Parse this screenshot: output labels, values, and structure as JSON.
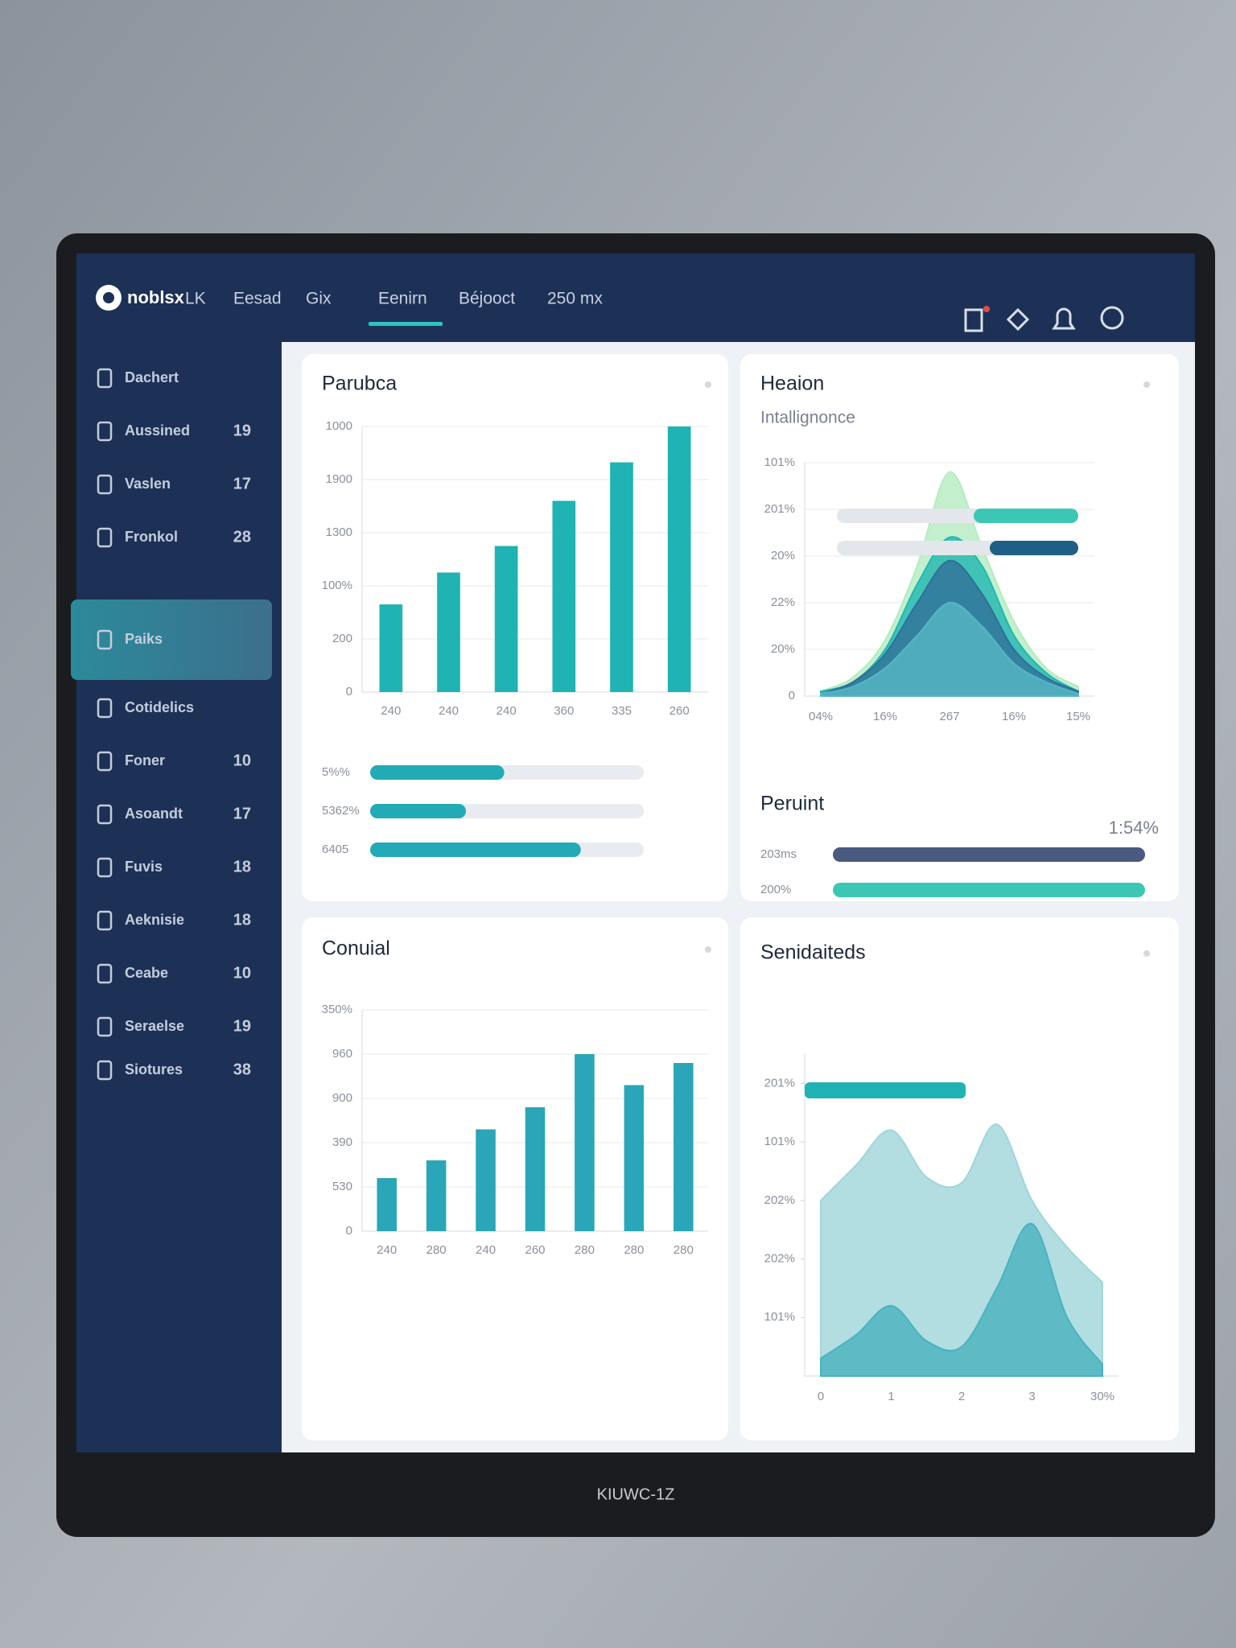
{
  "brand": "noblsx",
  "nav": [
    "LK",
    "Eesad",
    "Gix",
    "Eenirn",
    "Béjooct",
    "250 mx"
  ],
  "sidebar": [
    {
      "label": "Dachert"
    },
    {
      "label": "Aussined",
      "count": "19"
    },
    {
      "label": "Vaslen",
      "count": "17"
    },
    {
      "label": "Fronkol",
      "count": "28"
    },
    {
      "label": "Paiks"
    },
    {
      "label": "Cotidelics"
    },
    {
      "label": "Foner",
      "count": "10"
    },
    {
      "label": "Asoandt",
      "count": "17"
    },
    {
      "label": "Fuvis",
      "count": "18"
    },
    {
      "label": "Aeknisie",
      "count": "18"
    },
    {
      "label": "Ceabe",
      "count": "10"
    },
    {
      "label": "Seraelse",
      "count": "19"
    },
    {
      "label": "Siotures",
      "count": "38"
    }
  ],
  "monitor_label": "KIUWC-1Z",
  "status_panel": {
    "title": "Peruint",
    "value_label": "1:54%",
    "bars": [
      {
        "label": "203ms",
        "value": 97,
        "color": "#4a5a80"
      },
      {
        "label": "200%",
        "value": 97,
        "color": "#3cc7b4"
      }
    ]
  },
  "chart_data": [
    {
      "type": "bar",
      "title": "Parubca",
      "categories": [
        "240",
        "240",
        "240",
        "360",
        "335",
        "260"
      ],
      "values": [
        330,
        450,
        550,
        720,
        865,
        1000
      ],
      "color": "#1fb3b3",
      "ylim": [
        0,
        1000
      ],
      "yticks": [
        0,
        {
          "value": 200,
          "label": "200"
        },
        {
          "value": 400,
          "label": "100%"
        },
        {
          "value": 600,
          "label": "1300"
        },
        {
          "value": 800,
          "label": "1900"
        },
        1000
      ],
      "grid": true,
      "progress": [
        {
          "label": "5%%",
          "value": 49
        },
        {
          "label": "5362%",
          "value": 35
        },
        {
          "label": "6405",
          "value": 77
        }
      ],
      "progress_color": "#22aab6"
    },
    {
      "type": "area",
      "title": "Heaion",
      "subtitle": "Intallignonce",
      "categories": [
        "04%",
        null,
        "16%",
        null,
        "267",
        null,
        "16%",
        null,
        "15%"
      ],
      "series": [
        {
          "color": "#b5ebc0",
          "values": [
            0.1,
            0.4,
            1.2,
            2.8,
            4.8,
            3.2,
            1.6,
            0.6,
            0.2
          ]
        },
        {
          "color": "#1fb8b0",
          "values": [
            0.1,
            0.3,
            1.0,
            2.4,
            3.4,
            2.8,
            1.3,
            0.5,
            0.1
          ]
        },
        {
          "color": "#2f6f9a",
          "values": [
            0.05,
            0.3,
            0.9,
            2.0,
            2.9,
            2.2,
            1.0,
            0.4,
            0.1
          ]
        },
        {
          "color": "#56b7c4",
          "values": [
            0.05,
            0.2,
            0.6,
            1.3,
            2.0,
            1.5,
            0.7,
            0.3,
            0.05
          ]
        }
      ],
      "ylim": [
        0,
        5
      ],
      "yticks": [
        0,
        {
          "value": 1,
          "label": "20%"
        },
        {
          "value": 2,
          "label": "22%"
        },
        {
          "value": 3,
          "label": "20%"
        },
        {
          "value": 4,
          "label": "201%"
        },
        {
          "value": 5,
          "label": "101%"
        }
      ],
      "grid": true
    },
    {
      "type": "bar",
      "title": "Conuial",
      "categories": [
        "240",
        "280",
        "240",
        "260",
        "280",
        "280",
        "280"
      ],
      "values": [
        1.2,
        1.6,
        2.3,
        2.8,
        4.0,
        3.3,
        3.8
      ],
      "color": "#2aa6b8",
      "ylim": [
        0,
        5
      ],
      "yticks": [
        0,
        {
          "value": 1,
          "label": "530"
        },
        {
          "value": 2,
          "label": "390"
        },
        {
          "value": 3,
          "label": "900"
        },
        {
          "value": 4,
          "label": "960"
        },
        {
          "value": 5,
          "label": "350%"
        }
      ],
      "grid": true
    },
    {
      "type": "area",
      "title": "Senidaiteds",
      "categories": [
        "0",
        null,
        "1",
        null,
        "2",
        null,
        "3",
        null,
        "30%"
      ],
      "series": [
        {
          "color": "#9fd6d9",
          "values": [
            3.0,
            3.6,
            4.2,
            3.4,
            3.3,
            4.3,
            3.0,
            2.2,
            1.6
          ]
        },
        {
          "color": "#48b2bf",
          "values": [
            0.3,
            0.7,
            1.2,
            0.6,
            0.5,
            1.5,
            2.6,
            1.0,
            0.2
          ]
        }
      ],
      "ylim": [
        0,
        5.5
      ],
      "yticks": [
        {
          "value": 1,
          "label": "101%"
        },
        {
          "value": 2,
          "label": "202%"
        },
        {
          "value": 3,
          "label": "202%"
        },
        {
          "value": 4,
          "label": "101%"
        },
        {
          "value": 5,
          "label": "201%"
        }
      ],
      "grid": false
    }
  ]
}
